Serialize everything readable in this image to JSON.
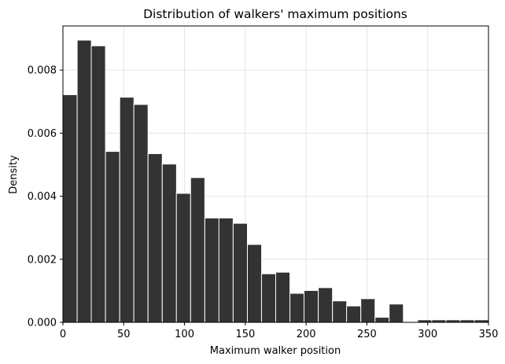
{
  "chart_data": {
    "type": "bar",
    "title": "Distribution of walkers' maximum positions",
    "xlabel": "Maximum walker position",
    "ylabel": "Density",
    "xlim": [
      0,
      350
    ],
    "ylim": [
      0,
      0.0094
    ],
    "xticks": [
      "0",
      "50",
      "100",
      "150",
      "200",
      "250",
      "300",
      "350"
    ],
    "yticks": [
      "0.000",
      "0.002",
      "0.004",
      "0.006",
      "0.008"
    ],
    "grid": true,
    "bin_width": 11.7,
    "bin_starts": [
      0,
      11.7,
      23.3,
      35,
      46.7,
      58.3,
      70,
      81.7,
      93.3,
      105,
      116.7,
      128.3,
      140,
      151.7,
      163.3,
      175,
      186.7,
      198.3,
      210,
      221.7,
      233.3,
      245,
      256.7,
      268.3,
      280,
      291.7,
      303.3,
      315,
      326.7,
      338.3
    ],
    "values": [
      0.00722,
      0.00895,
      0.00877,
      0.00542,
      0.00714,
      0.00691,
      0.00535,
      0.00502,
      0.00409,
      0.00459,
      0.00331,
      0.00331,
      0.00314,
      0.00247,
      0.00154,
      0.00159,
      0.00092,
      0.00101,
      0.0011,
      0.00068,
      0.00052,
      0.00075,
      0.00016,
      0.00058,
      0.0,
      8e-05,
      8e-05,
      8e-05,
      8e-05,
      8e-05
    ],
    "bar_color": "#333333",
    "edge_color": "#ffffff"
  }
}
